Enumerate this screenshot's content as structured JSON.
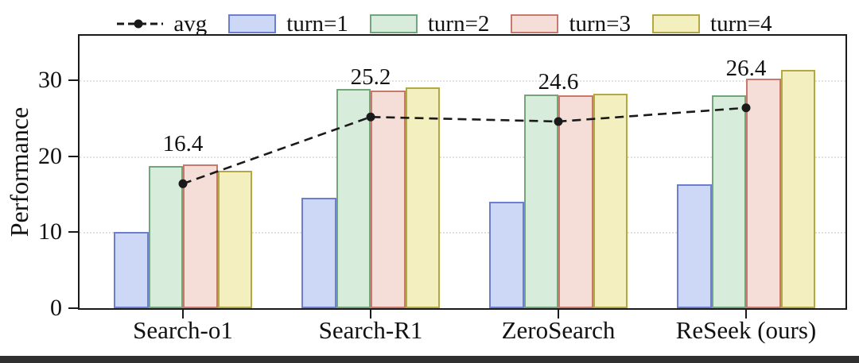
{
  "chart_data": {
    "type": "bar",
    "title": "",
    "xlabel": "",
    "ylabel": "Performance",
    "categories": [
      "Search-o1",
      "Search-R1",
      "ZeroSearch",
      "ReSeek (ours)"
    ],
    "yticks": [
      0,
      10,
      20,
      30
    ],
    "ytick_labels": [
      "0",
      "10",
      "20",
      "30"
    ],
    "ylim": [
      0,
      35.9
    ],
    "grid": "horizontal-dotted",
    "legend_position": "top",
    "series": [
      {
        "name": "turn=1",
        "fill": "#cdd7f6",
        "edge": "#6b7ed2",
        "values": [
          10.1,
          14.5,
          14.0,
          16.3
        ]
      },
      {
        "name": "turn=2",
        "fill": "#d8ecdc",
        "edge": "#74a47a",
        "values": [
          18.7,
          28.9,
          28.2,
          28.1
        ]
      },
      {
        "name": "turn=3",
        "fill": "#f5ded7",
        "edge": "#c7796d",
        "values": [
          18.9,
          28.7,
          28.0,
          30.2
        ]
      },
      {
        "name": "turn=4",
        "fill": "#f4efbe",
        "edge": "#b4a746",
        "values": [
          18.1,
          29.1,
          28.3,
          31.4
        ]
      }
    ],
    "avg_line": {
      "name": "avg",
      "values": [
        16.4,
        25.2,
        24.6,
        26.4
      ],
      "point_labels": [
        "16.4",
        "25.2",
        "24.6",
        "26.4"
      ],
      "color": "#1a1a1a",
      "style": "dashed-with-circle-markers"
    }
  },
  "colors": {
    "frame": "#1a1a1a",
    "grid": "#e0e0e0",
    "background": "#ffffff",
    "bottom_bar": "#303030",
    "text": "#111111"
  }
}
